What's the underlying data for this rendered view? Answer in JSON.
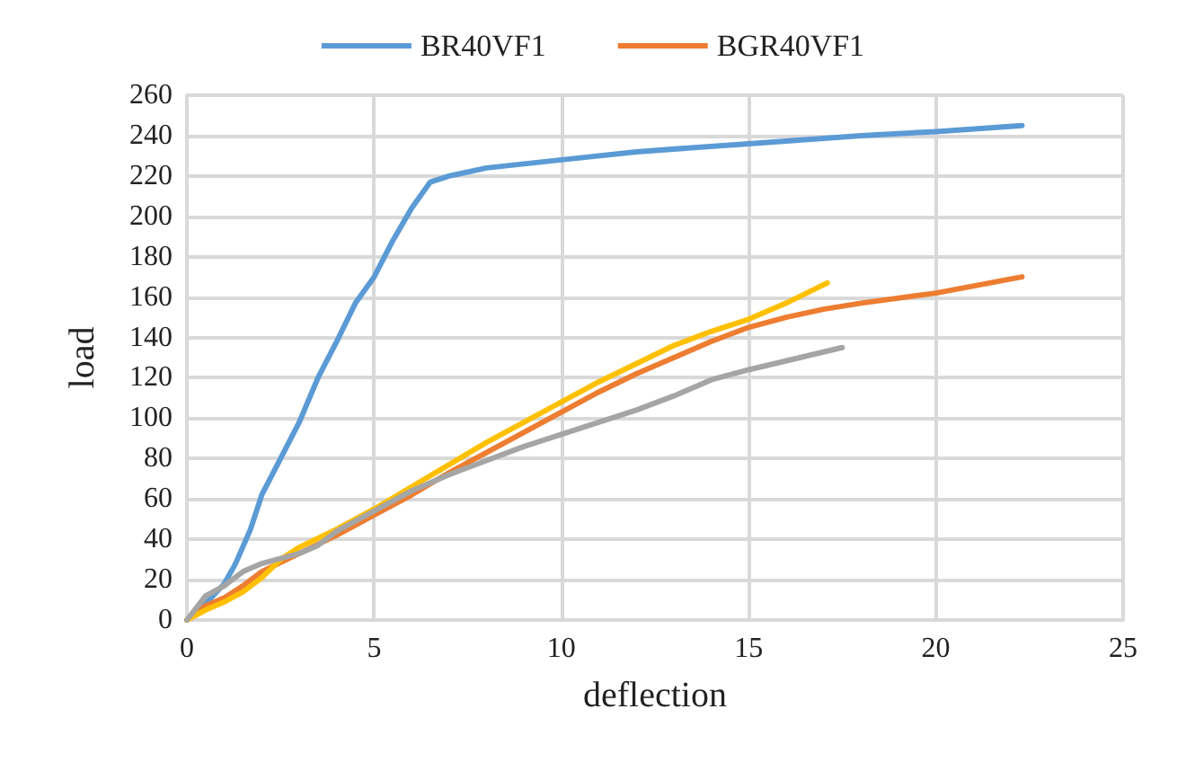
{
  "chart_data": {
    "type": "line",
    "xlabel": "deflection",
    "ylabel": "load",
    "xlim": [
      0,
      25
    ],
    "xticks": [
      0,
      5,
      10,
      15,
      20,
      25
    ],
    "ylim": [
      0,
      260
    ],
    "yticks": [
      0,
      20,
      40,
      60,
      80,
      100,
      120,
      140,
      160,
      180,
      200,
      220,
      240,
      260
    ],
    "grid": true,
    "legend": "top",
    "marker": "none",
    "series": [
      {
        "name": "BR40VF1",
        "color": "#5b9bd5",
        "x": [
          0,
          0.5,
          1,
          1.3,
          1.7,
          2,
          2.5,
          3,
          3.5,
          4,
          4.5,
          5,
          5.5,
          6,
          6.5,
          7,
          8,
          10,
          12,
          15,
          18,
          20,
          22.3
        ],
        "values": [
          0,
          8,
          18,
          28,
          45,
          62,
          80,
          98,
          120,
          138,
          157,
          170,
          188,
          204,
          217,
          220,
          224,
          228,
          232,
          236,
          240,
          242,
          245
        ]
      },
      {
        "name": "BGR40VF1",
        "color": "#ed7d31",
        "x": [
          0,
          0.5,
          1,
          1.5,
          2,
          3,
          4,
          5,
          6,
          7,
          8,
          9,
          10,
          11,
          12,
          13,
          14,
          15,
          16,
          17,
          18,
          20,
          22.3
        ],
        "values": [
          0,
          7,
          11,
          17,
          24,
          33,
          42,
          52,
          62,
          73,
          83,
          93,
          103,
          113,
          122,
          130,
          138,
          145,
          150,
          154,
          157,
          162,
          170
        ]
      },
      {
        "color": "#ffc000",
        "x": [
          0,
          0.5,
          1,
          1.5,
          2,
          2.5,
          3,
          4,
          5,
          6,
          7,
          8,
          9,
          10,
          11,
          12,
          13,
          14,
          15,
          16,
          17.1
        ],
        "values": [
          0,
          5,
          9,
          14,
          21,
          30,
          36,
          45,
          55,
          66,
          77,
          88,
          98,
          108,
          118,
          127,
          136,
          143,
          149,
          157,
          167
        ]
      },
      {
        "color": "#a5a5a5",
        "x": [
          0,
          0.5,
          1,
          1.5,
          2,
          3,
          3.5,
          4,
          5,
          6,
          7,
          8,
          9,
          10,
          11,
          12,
          13,
          14,
          15,
          17.5
        ],
        "values": [
          0,
          12,
          17,
          24,
          28,
          33,
          37,
          44,
          54,
          64,
          72,
          79,
          86,
          92,
          98,
          104,
          111,
          119,
          124,
          135
        ]
      }
    ]
  }
}
